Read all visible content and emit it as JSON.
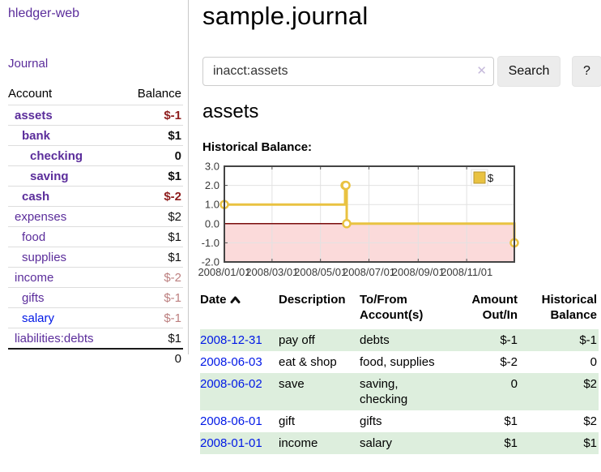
{
  "colors": {
    "link_purple": "#5b2d9b",
    "link_blue": "#0018e6",
    "negative_strong": "#8e1d1d",
    "negative_soft": "#bc7f7f",
    "row_stripe_green": "#ddeedd",
    "chart_line_gold": "#e9c241",
    "chart_zero_line": "#7a0c0c",
    "chart_negative_fill": "#fbdada",
    "chart_grid": "#e2e2e2",
    "chart_border": "#444444"
  },
  "sidebar": {
    "brand": "hledger-web",
    "nav_journal": "Journal",
    "table": {
      "col_account": "Account",
      "col_balance": "Balance",
      "rows": [
        {
          "name": "assets",
          "balance": "$-1"
        },
        {
          "name": "bank",
          "balance": "$1"
        },
        {
          "name": "checking",
          "balance": "0"
        },
        {
          "name": "saving",
          "balance": "$1"
        },
        {
          "name": "cash",
          "balance": "$-2"
        },
        {
          "name": "expenses",
          "balance": "$2"
        },
        {
          "name": "food",
          "balance": "$1"
        },
        {
          "name": "supplies",
          "balance": "$1"
        },
        {
          "name": "income",
          "balance": "$-2"
        },
        {
          "name": "gifts",
          "balance": "$-1"
        },
        {
          "name": "salary",
          "balance": "$-1"
        },
        {
          "name": "liabilities:debts",
          "balance": "$1"
        }
      ],
      "total": "0"
    }
  },
  "header": {
    "title": "sample.journal"
  },
  "search": {
    "value": "inacct:assets",
    "clear_icon": "✕",
    "search_button": "Search",
    "help_button": "?"
  },
  "content": {
    "account_heading": "assets",
    "chart_caption": "Historical Balance:"
  },
  "chart_data": {
    "type": "line",
    "title": "Historical Balance",
    "step": true,
    "series": [
      {
        "name": "$",
        "points": [
          [
            "2008-01-01",
            1
          ],
          [
            "2008-06-01",
            2
          ],
          [
            "2008-06-02",
            2
          ],
          [
            "2008-06-03",
            0
          ],
          [
            "2008-12-31",
            -1
          ]
        ]
      }
    ],
    "ylim": [
      -2,
      3
    ],
    "y_tick_labels": [
      "3.0",
      "2.0",
      "1.0",
      "0.0",
      "-1.0",
      "-2.0"
    ],
    "x_range": [
      "2008-01-01",
      "2008-12-31"
    ],
    "x_ticks": [
      {
        "label": "2008/01/01",
        "date": "2008-01-01"
      },
      {
        "label": "2008/03/01",
        "date": "2008-03-01"
      },
      {
        "label": "2008/05/01",
        "date": "2008-05-01"
      },
      {
        "label": "2008/07/01",
        "date": "2008-07-01"
      },
      {
        "label": "2008/09/01",
        "date": "2008-09-01"
      },
      {
        "label": "2008/11/01",
        "date": "2008-11-01"
      }
    ],
    "legend": {
      "label": "$",
      "position": "top-right"
    },
    "grid": true,
    "zero_line": true,
    "negative_region_shaded": true
  },
  "register": {
    "headers": {
      "date": "Date",
      "description": "Description",
      "to_from": "To/From Account(s)",
      "amount": "Amount Out/In",
      "balance": "Historical Balance"
    },
    "sort_icon": "chevron-up",
    "rows": [
      {
        "date": "2008-12-31",
        "description": "pay off",
        "to_from": "debts",
        "amount": "$-1",
        "balance": "$-1"
      },
      {
        "date": "2008-06-03",
        "description": "eat & shop",
        "to_from": "food, supplies",
        "amount": "$-2",
        "balance": "0"
      },
      {
        "date": "2008-06-02",
        "description": "save",
        "to_from": "saving, checking",
        "amount": "0",
        "balance": "$2"
      },
      {
        "date": "2008-06-01",
        "description": "gift",
        "to_from": "gifts",
        "amount": "$1",
        "balance": "$2"
      },
      {
        "date": "2008-01-01",
        "description": "income",
        "to_from": "salary",
        "amount": "$1",
        "balance": "$1"
      }
    ]
  }
}
